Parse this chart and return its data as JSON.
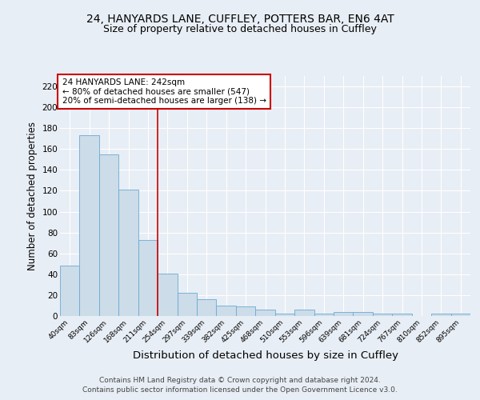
{
  "title1": "24, HANYARDS LANE, CUFFLEY, POTTERS BAR, EN6 4AT",
  "title2": "Size of property relative to detached houses in Cuffley",
  "xlabel": "Distribution of detached houses by size in Cuffley",
  "ylabel": "Number of detached properties",
  "categories": [
    "40sqm",
    "83sqm",
    "126sqm",
    "168sqm",
    "211sqm",
    "254sqm",
    "297sqm",
    "339sqm",
    "382sqm",
    "425sqm",
    "468sqm",
    "510sqm",
    "553sqm",
    "596sqm",
    "639sqm",
    "681sqm",
    "724sqm",
    "767sqm",
    "810sqm",
    "852sqm",
    "895sqm"
  ],
  "values": [
    48,
    173,
    155,
    121,
    73,
    41,
    22,
    16,
    10,
    9,
    6,
    2,
    6,
    2,
    4,
    4,
    2,
    2,
    0,
    2,
    2
  ],
  "bar_color": "#ccdce8",
  "bar_edge_color": "#6aaad4",
  "vline_x_index": 5,
  "vline_color": "#cc0000",
  "annotation_text": "24 HANYARDS LANE: 242sqm\n← 80% of detached houses are smaller (547)\n20% of semi-detached houses are larger (138) →",
  "annotation_box_color": "#ffffff",
  "annotation_box_edge_color": "#cc0000",
  "ylim": [
    0,
    230
  ],
  "yticks": [
    0,
    20,
    40,
    60,
    80,
    100,
    120,
    140,
    160,
    180,
    200,
    220
  ],
  "bg_color": "#e8eef5",
  "plot_bg_color": "#e8eef5",
  "footer": "Contains HM Land Registry data © Crown copyright and database right 2024.\nContains public sector information licensed under the Open Government Licence v3.0.",
  "title1_fontsize": 10,
  "title2_fontsize": 9,
  "xlabel_fontsize": 9.5,
  "ylabel_fontsize": 8.5,
  "footer_fontsize": 6.5,
  "annot_fontsize": 7.5
}
